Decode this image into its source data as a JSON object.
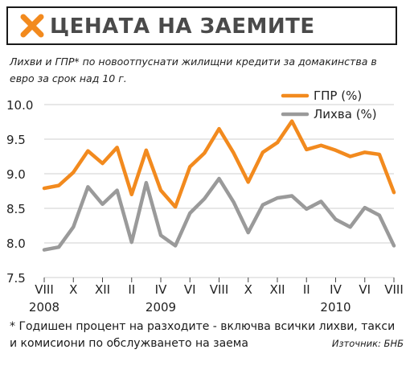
{
  "header": {
    "title": "ЦЕНАТА НА ЗАЕМИТЕ",
    "subtitle": "Лихви и ГПР* по новоотпуснати жилищни кредити за домакинства в евро за срок над 10 г."
  },
  "footer": {
    "footnote": "* Годишен процент на разходите - включва всички лихви, такси и комисиони по обслужването на заема",
    "source": "Източник: БНБ"
  },
  "colors": {
    "gpr": "#f28a1e",
    "rate": "#9a9a9a",
    "accent": "#f28a1e"
  },
  "chart_data": {
    "type": "line",
    "ylim": [
      7.5,
      10.0
    ],
    "yticks": [
      "7.5",
      "8.0",
      "8.5",
      "9.0",
      "9.5",
      "10.0"
    ],
    "grid": true,
    "legend_position": "top-right",
    "x_tick_labels": [
      "VIII",
      "X",
      "XII",
      "II",
      "IV",
      "VI",
      "VIII",
      "X",
      "XII",
      "II",
      "IV",
      "VI",
      "VIII"
    ],
    "x_tick_months": [
      0,
      2,
      4,
      6,
      8,
      10,
      12,
      14,
      16,
      18,
      20,
      22,
      24
    ],
    "year_labels": [
      {
        "label": "2008",
        "month": 0
      },
      {
        "label": "2009",
        "month": 8
      },
      {
        "label": "2010",
        "month": 20
      }
    ],
    "series": [
      {
        "name": "ГПР (%)",
        "values": [
          8.79,
          8.83,
          9.02,
          9.33,
          9.15,
          9.38,
          8.7,
          9.34,
          8.76,
          8.52,
          9.1,
          9.3,
          9.65,
          9.3,
          8.88,
          9.31,
          9.45,
          9.76,
          9.35,
          9.41,
          9.34,
          9.25,
          9.31,
          9.28,
          8.73
        ]
      },
      {
        "name": "Лихва (%)",
        "values": [
          7.9,
          7.94,
          8.23,
          8.81,
          8.56,
          8.76,
          8.01,
          8.87,
          8.11,
          7.96,
          8.43,
          8.64,
          8.93,
          8.59,
          8.15,
          8.55,
          8.65,
          8.68,
          8.49,
          8.6,
          8.34,
          8.23,
          8.51,
          8.4,
          7.96
        ]
      }
    ]
  }
}
